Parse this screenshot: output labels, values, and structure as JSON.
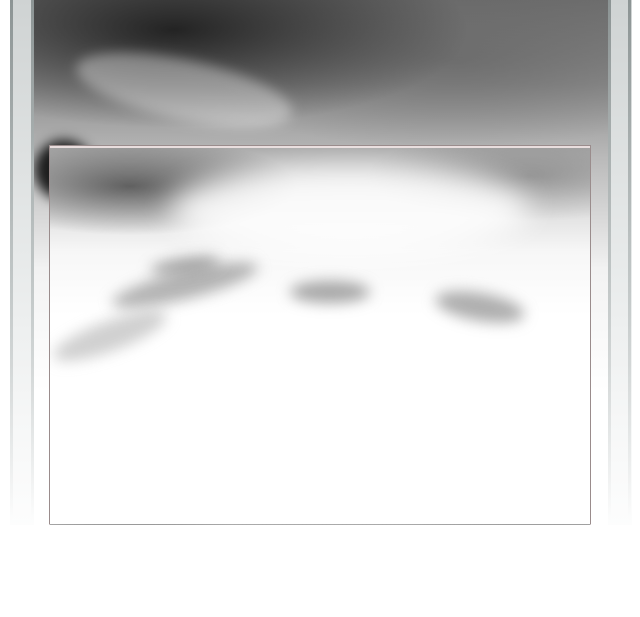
{
  "screen": {
    "background_color": "#ffffff",
    "accent_border_color": "#9a8c8c"
  }
}
